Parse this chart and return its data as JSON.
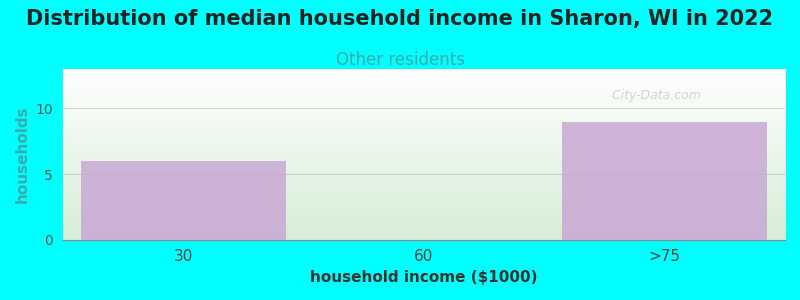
{
  "title": "Distribution of median household income in Sharon, WI in 2022",
  "subtitle": "Other residents",
  "categories": [
    "30",
    "60",
    ">75"
  ],
  "values": [
    6,
    0,
    9
  ],
  "bar_color": "#c9a8d4",
  "background_color": "#00ffff",
  "plot_bg_top": "#ffffff",
  "plot_bg_bottom": "#d6ecd6",
  "xlabel": "household income ($1000)",
  "ylabel": "households",
  "ylim": [
    0,
    13
  ],
  "yticks": [
    0,
    5,
    10
  ],
  "title_fontsize": 15,
  "subtitle_fontsize": 12,
  "subtitle_color": "#3aacac",
  "watermark": "  City-Data.com"
}
